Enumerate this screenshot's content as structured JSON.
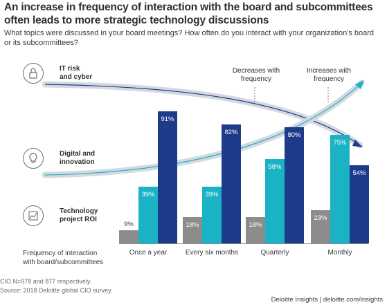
{
  "title": "An increase in frequency of interaction with the board and subcommittees often leads to more strategic technology discussions",
  "subtitle": "What topics were discussed in your board meetings? How often do you interact with your organization's board or its subcommittees?",
  "topics": [
    {
      "label_line1": "IT risk",
      "label_line2": "and cyber",
      "icon": "lock-icon"
    },
    {
      "label_line1": "Digital and",
      "label_line2": "innovation",
      "icon": "lightbulb-icon"
    },
    {
      "label_line1": "Technology",
      "label_line2": "project ROI",
      "icon": "chart-trend-icon"
    }
  ],
  "trend_labels": {
    "decreases_1": "Decreases with",
    "decreases_2": "frequency",
    "increases_1": "Increases with",
    "increases_2": "frequency"
  },
  "x_axis": {
    "title_line1": "Frequency of interaction",
    "title_line2": "with board/subcommittees"
  },
  "notes": {
    "line1": "CIO N=978 and 877 respectively.",
    "line2": "Source: 2018 Deloitte global CIO survey."
  },
  "footer": "Deloitte Insights | deloitte.com/insights",
  "colors": {
    "technology_project_roi": "#8c8c8c",
    "digital_and_innovation": "#1ab3c6",
    "it_risk_and_cyber": "#1e3a8a",
    "trend_curve": "#c9cdd4"
  },
  "chart_data": {
    "type": "bar",
    "categories": [
      "Once a year",
      "Every six months",
      "Quarterly",
      "Monthly"
    ],
    "series": [
      {
        "name": "Technology project ROI",
        "values": [
          9,
          18,
          18,
          23
        ]
      },
      {
        "name": "Digital and innovation",
        "values": [
          39,
          39,
          58,
          75
        ]
      },
      {
        "name": "IT risk and cyber",
        "values": [
          91,
          82,
          80,
          54
        ]
      }
    ],
    "value_labels": [
      [
        "9%",
        "18%",
        "18%",
        "23%"
      ],
      [
        "39%",
        "39%",
        "58%",
        "75%"
      ],
      [
        "91%",
        "82%",
        "80%",
        "54%"
      ]
    ],
    "ylim": [
      0,
      100
    ]
  }
}
